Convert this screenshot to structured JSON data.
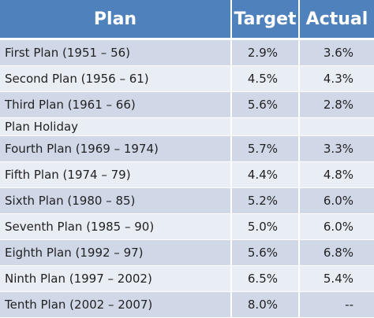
{
  "table": {
    "headers": {
      "plan": "Plan",
      "target": "Target",
      "actual": "Actual"
    },
    "rows": [
      {
        "plan": "First Plan (1951 – 56)",
        "target": "2.9%",
        "actual": "3.6%"
      },
      {
        "plan": "Second Plan (1956 – 61)",
        "target": "4.5%",
        "actual": "4.3%"
      },
      {
        "plan": "Third Plan (1961 – 66)",
        "target": "5.6%",
        "actual": "2.8%"
      },
      {
        "plan": "Plan Holiday",
        "target": "",
        "actual": ""
      },
      {
        "plan": "Fourth Plan (1969 – 1974)",
        "target": "5.7%",
        "actual": "3.3%"
      },
      {
        "plan": "Fifth Plan (1974 – 79)",
        "target": "4.4%",
        "actual": "4.8%"
      },
      {
        "plan": "Sixth Plan (1980 – 85)",
        "target": "5.2%",
        "actual": "6.0%"
      },
      {
        "plan": "Seventh Plan (1985 – 90)",
        "target": "5.0%",
        "actual": "6.0%"
      },
      {
        "plan": "Eighth Plan (1992 – 97)",
        "target": "5.6%",
        "actual": "6.8%"
      },
      {
        "plan": "Ninth Plan (1997 – 2002)",
        "target": "6.5%",
        "actual": "5.4%"
      },
      {
        "plan": "Tenth Plan (2002 – 2007)",
        "target": "8.0%",
        "actual": "--"
      }
    ]
  },
  "colors": {
    "header_bg": "#4f81bd",
    "row_even": "#d0d8e8",
    "row_odd": "#e9edf4"
  }
}
